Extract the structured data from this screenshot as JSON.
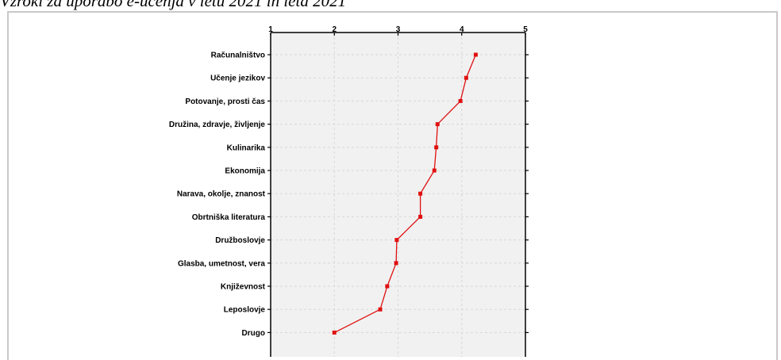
{
  "caption": "Vzroki za uporabo e-učenja v letu 2021 in leta 2021",
  "colors": {
    "line": "#e01010",
    "panel": "#f1f1f1",
    "grid": "#d8d8d8"
  },
  "chart_data": {
    "type": "line",
    "orientation": "horizontal-profile",
    "xlim": [
      1,
      5
    ],
    "x_ticks": [
      "1",
      "2",
      "3",
      "4",
      "5"
    ],
    "categories": [
      "Računalništvo",
      "Učenje jezikov",
      "Potovanje, prosti čas",
      "Družina, zdravje, življenje",
      "Kulinarika",
      "Ekonomija",
      "Narava, okolje, znanost",
      "Obrtniška literatura",
      "Družboslovje",
      "Glasba, umetnost, vera",
      "Književnost",
      "Leposlovje",
      "Drugo"
    ],
    "values": [
      4.22,
      4.07,
      3.98,
      3.62,
      3.6,
      3.57,
      3.35,
      3.35,
      2.98,
      2.97,
      2.83,
      2.72,
      2.0
    ],
    "grid": true
  }
}
